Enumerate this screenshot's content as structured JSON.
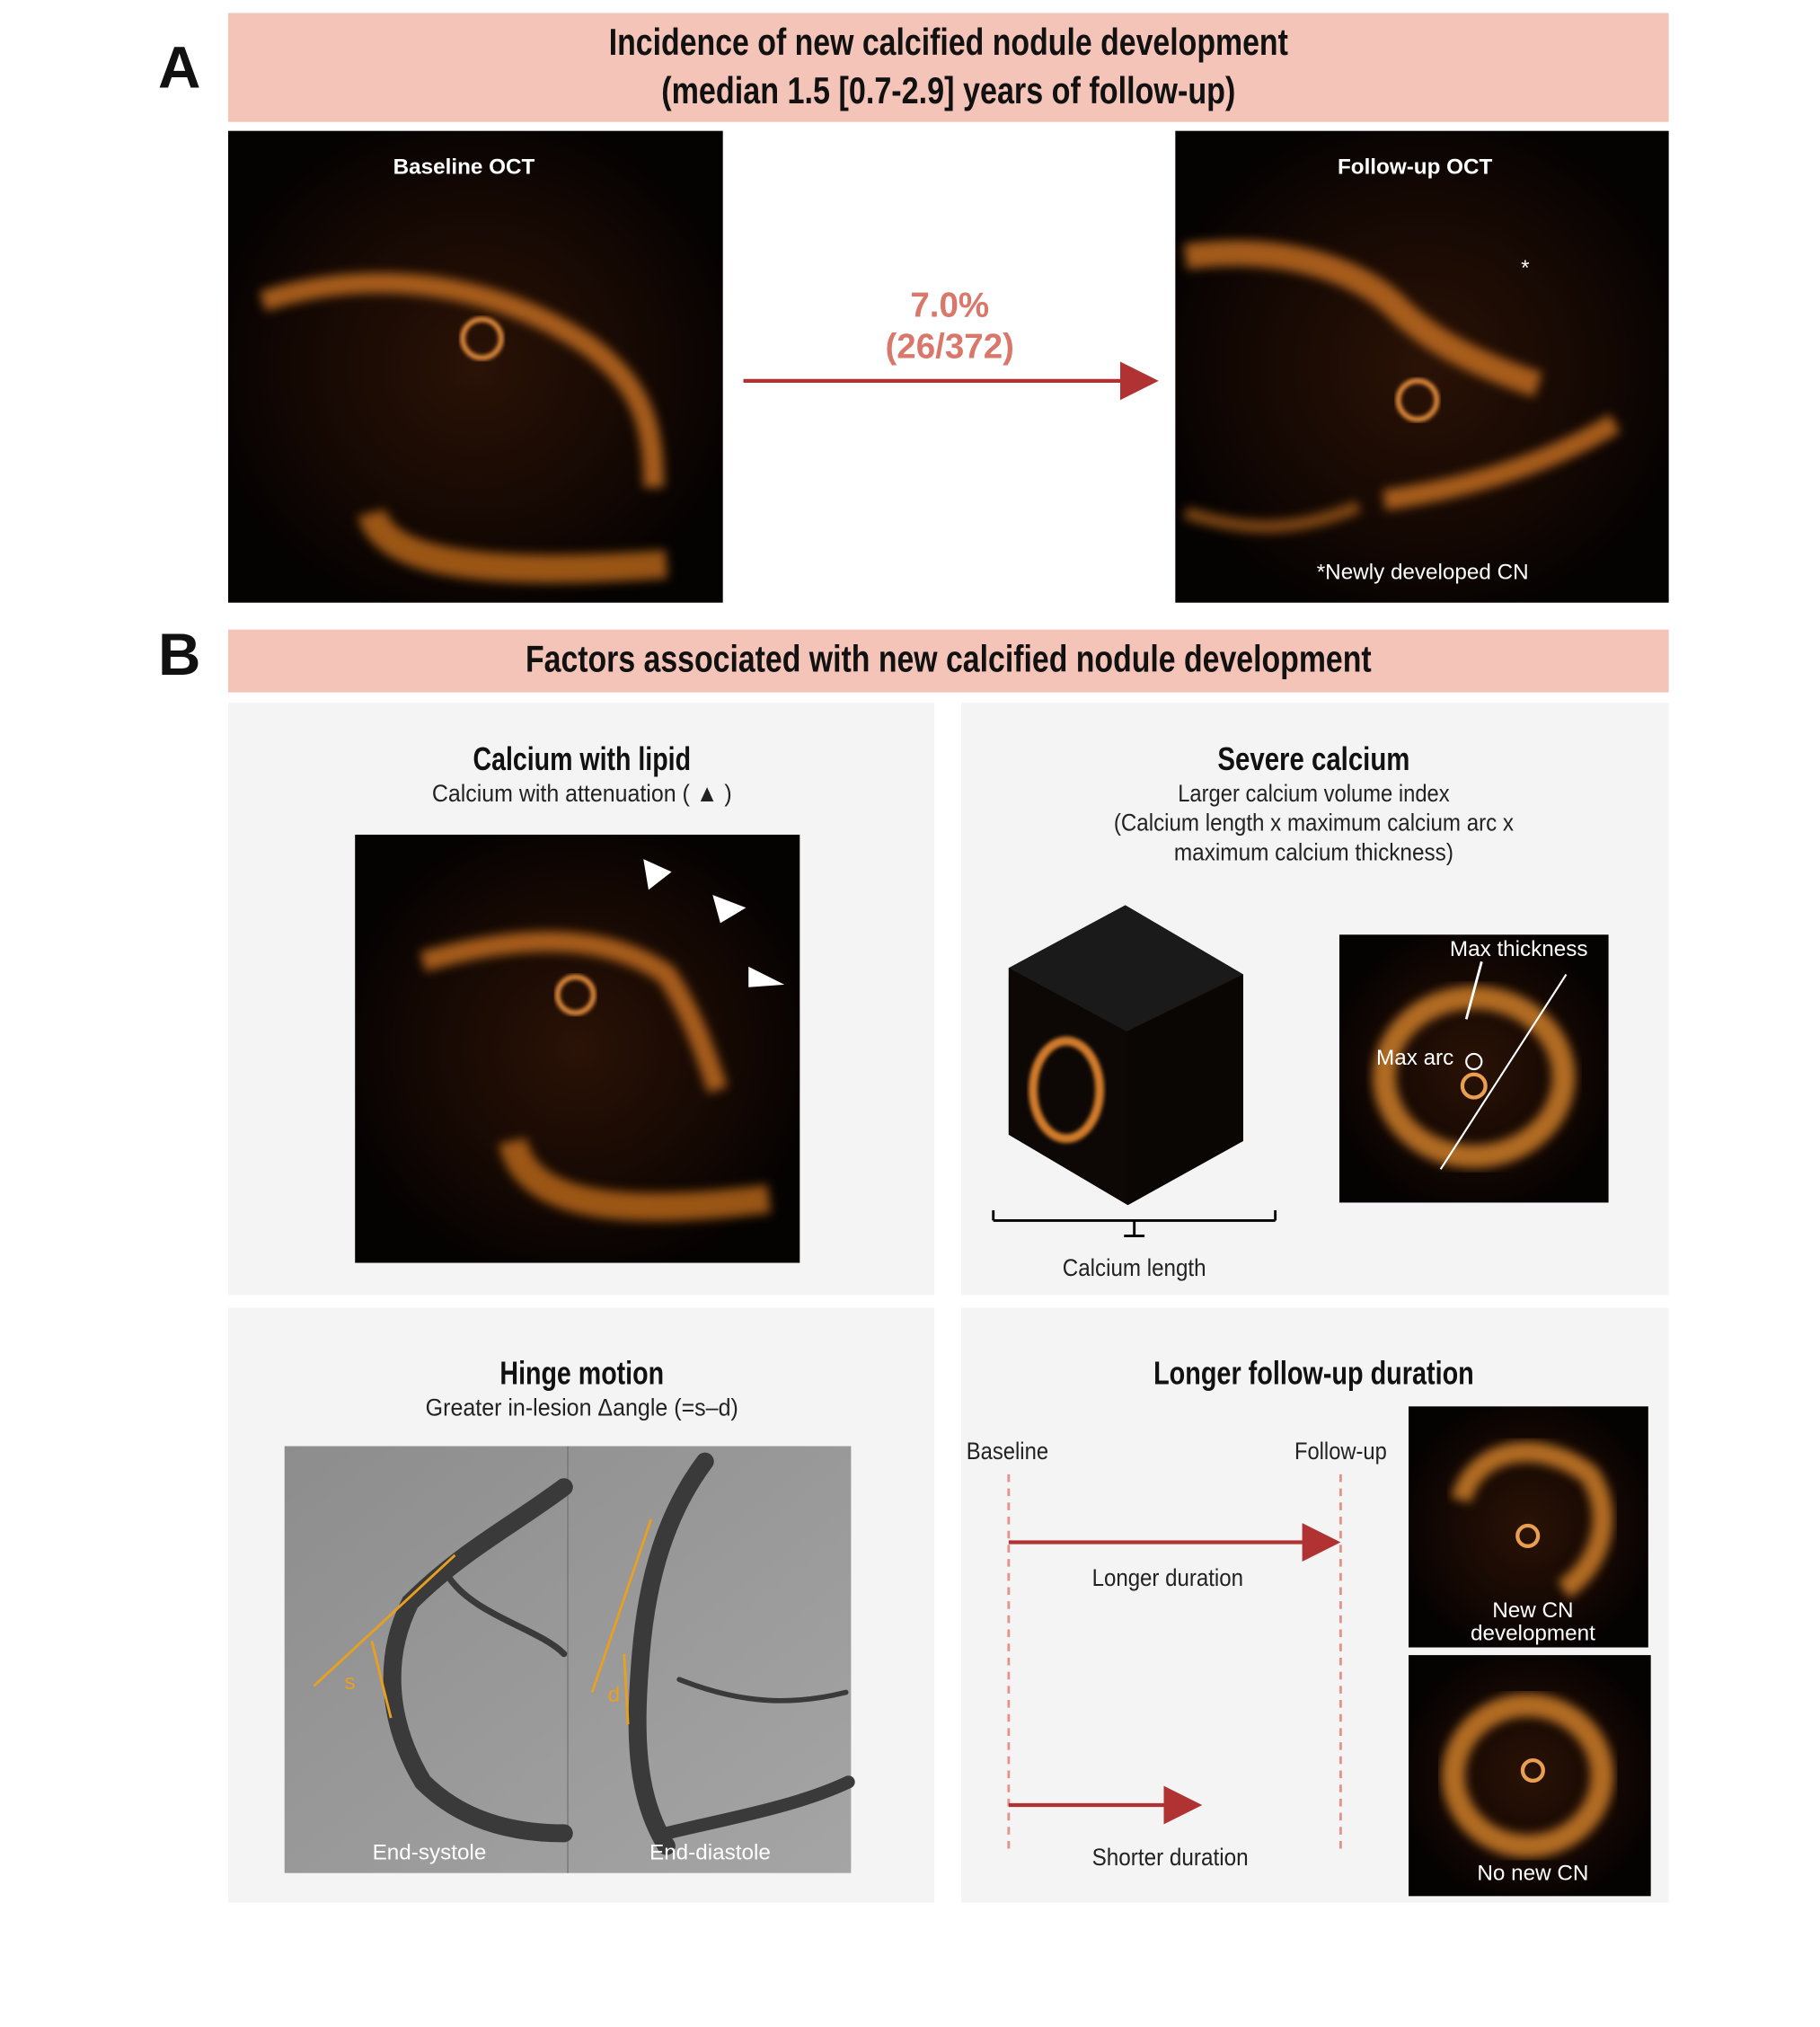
{
  "panel_a": {
    "label": "A",
    "title_line1": "Incidence of new calcified nodule development",
    "title_line2": "(median 1.5 [0.7-2.9] years of follow-up)",
    "baseline_label": "Baseline OCT",
    "followup_label": "Follow-up OCT",
    "incidence": "7.0%",
    "count": "(26/372)",
    "asterisk": "*",
    "footnote": "*Newly developed CN"
  },
  "panel_b": {
    "label": "B",
    "title": "Factors associated with new calcified nodule development",
    "lipid": {
      "title": "Calcium with lipid",
      "subtitle": "Calcium with attenuation ( ▲ )"
    },
    "severe": {
      "title": "Severe calcium",
      "subtitle_1": "Larger calcium volume index",
      "subtitle_2": "(Calcium length x maximum calcium arc x",
      "subtitle_3": "maximum calcium thickness)",
      "max_thickness": "Max thickness",
      "max_arc": "Max arc",
      "length": "Calcium length"
    },
    "hinge": {
      "title": "Hinge motion",
      "subtitle": "Greater in-lesion Δangle (=s–d)",
      "s": "s",
      "d": "d",
      "systole": "End-systole",
      "diastole": "End-diastole"
    },
    "duration": {
      "title": "Longer follow-up duration",
      "baseline": "Baseline",
      "followup": "Follow-up",
      "longer": "Longer duration",
      "shorter": "Shorter duration",
      "new_cn_1": "New CN",
      "new_cn_2": "development",
      "no_new_cn": "No new CN"
    }
  }
}
